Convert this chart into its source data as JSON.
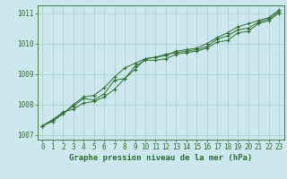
{
  "xlabel": "Graphe pression niveau de la mer (hPa)",
  "background_color": "#cce8ee",
  "grid_color": "#aacccc",
  "line_color": "#2d6e2d",
  "xlim": [
    -0.5,
    23.5
  ],
  "ylim": [
    1006.85,
    1011.25
  ],
  "yticks": [
    1007,
    1008,
    1009,
    1010,
    1011
  ],
  "xticks": [
    0,
    1,
    2,
    3,
    4,
    5,
    6,
    7,
    8,
    9,
    10,
    11,
    12,
    13,
    14,
    15,
    16,
    17,
    18,
    19,
    20,
    21,
    22,
    23
  ],
  "series1_x": [
    0,
    1,
    2,
    3,
    4,
    5,
    6,
    7,
    8,
    9,
    10,
    11,
    12,
    13,
    14,
    15,
    16,
    17,
    18,
    19,
    20,
    21,
    22,
    23
  ],
  "series1_y": [
    1007.3,
    1007.5,
    1007.75,
    1007.85,
    1008.05,
    1008.1,
    1008.25,
    1008.5,
    1008.85,
    1009.25,
    1009.45,
    1009.45,
    1009.5,
    1009.65,
    1009.7,
    1009.75,
    1009.85,
    1010.05,
    1010.1,
    1010.35,
    1010.4,
    1010.65,
    1010.75,
    1011.0
  ],
  "series2_x": [
    0,
    1,
    2,
    3,
    4,
    5,
    6,
    7,
    8,
    9,
    10,
    11,
    12,
    13,
    14,
    15,
    16,
    17,
    18,
    19,
    20,
    21,
    22,
    23
  ],
  "series2_y": [
    1007.3,
    1007.45,
    1007.7,
    1007.95,
    1008.2,
    1008.15,
    1008.35,
    1008.8,
    1008.85,
    1009.15,
    1009.5,
    1009.55,
    1009.65,
    1009.7,
    1009.75,
    1009.8,
    1009.9,
    1010.15,
    1010.25,
    1010.45,
    1010.5,
    1010.7,
    1010.8,
    1011.05
  ],
  "series3_x": [
    0,
    1,
    2,
    3,
    4,
    5,
    6,
    7,
    8,
    9,
    10,
    11,
    12,
    13,
    14,
    15,
    16,
    17,
    18,
    19,
    20,
    21,
    22,
    23
  ],
  "series3_y": [
    1007.3,
    1007.5,
    1007.7,
    1008.0,
    1008.25,
    1008.3,
    1008.55,
    1008.9,
    1009.2,
    1009.35,
    1009.5,
    1009.55,
    1009.6,
    1009.75,
    1009.8,
    1009.85,
    1010.0,
    1010.2,
    1010.35,
    1010.55,
    1010.65,
    1010.75,
    1010.85,
    1011.1
  ],
  "tick_fontsize": 5.5,
  "xlabel_fontsize": 6.5,
  "lw": 0.7,
  "ms": 3.0
}
